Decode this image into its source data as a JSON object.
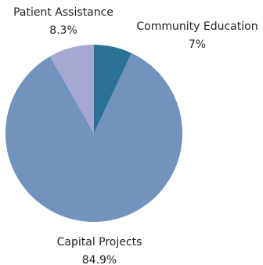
{
  "chart_data": {
    "type": "pie",
    "start_angle_deg": 0,
    "direction": "clockwise",
    "slices": [
      {
        "label": "Community Education",
        "value": 7.0,
        "value_label": "7%",
        "color": "#2c7296"
      },
      {
        "label": "Capital Projects",
        "value": 84.9,
        "value_label": "84.9%",
        "color": "#7293bd"
      },
      {
        "label": "Patient Assistance",
        "value": 8.3,
        "value_label": "8.3%",
        "color": "#a5a8d3"
      }
    ]
  }
}
